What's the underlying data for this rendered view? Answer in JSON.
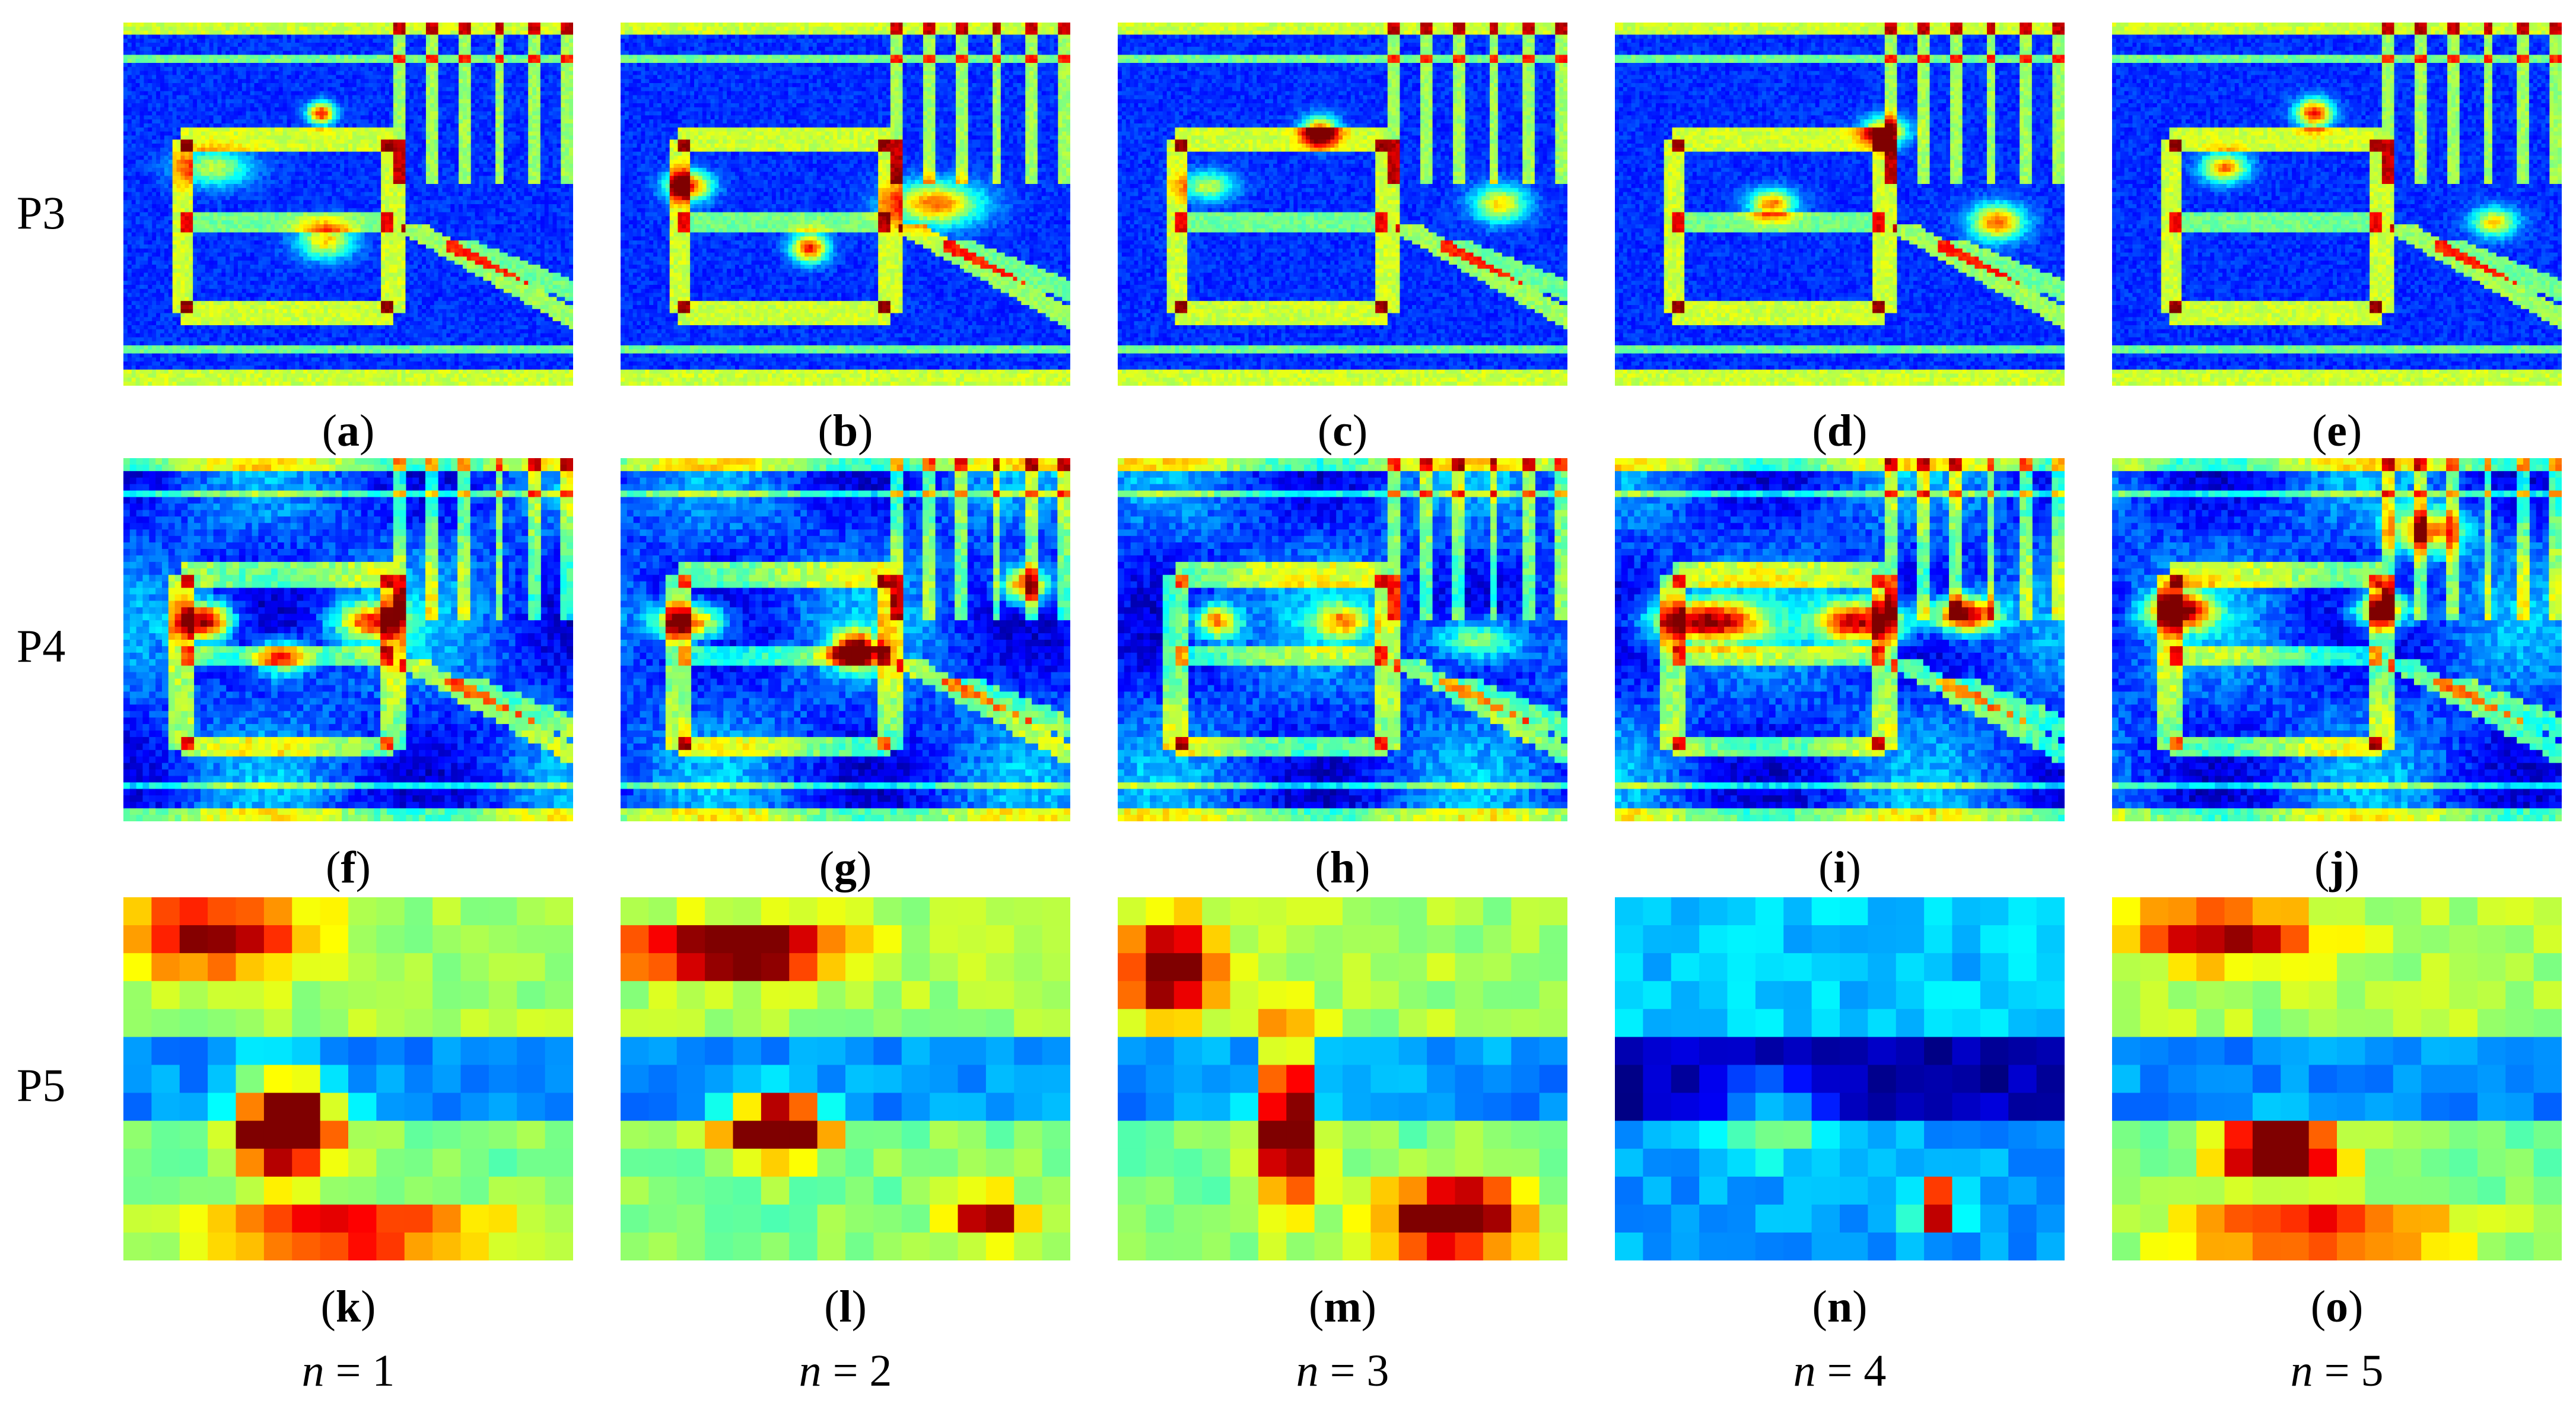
{
  "rows": [
    {
      "label": "P3",
      "style": "p3"
    },
    {
      "label": "P4",
      "style": "p4"
    },
    {
      "label": "P5",
      "style": "p5"
    }
  ],
  "columns": [
    {
      "n_var": "n",
      "n_eq": " = 1"
    },
    {
      "n_var": "n",
      "n_eq": " = 2"
    },
    {
      "n_var": "n",
      "n_eq": " = 3"
    },
    {
      "n_var": "n",
      "n_eq": " = 4"
    },
    {
      "n_var": "n",
      "n_eq": " = 5"
    }
  ],
  "panels": [
    {
      "letter": "a"
    },
    {
      "letter": "b"
    },
    {
      "letter": "c"
    },
    {
      "letter": "d"
    },
    {
      "letter": "e"
    },
    {
      "letter": "f"
    },
    {
      "letter": "g"
    },
    {
      "letter": "h"
    },
    {
      "letter": "i"
    },
    {
      "letter": "j"
    },
    {
      "letter": "k"
    },
    {
      "letter": "l"
    },
    {
      "letter": "m"
    },
    {
      "letter": "n"
    },
    {
      "letter": "o"
    }
  ],
  "colormap": {
    "name": "jet",
    "stops": [
      "#00007f",
      "#0000ff",
      "#007fff",
      "#00ffff",
      "#7fff7f",
      "#ffff00",
      "#ff7f00",
      "#ff0000",
      "#7f0000"
    ]
  }
}
